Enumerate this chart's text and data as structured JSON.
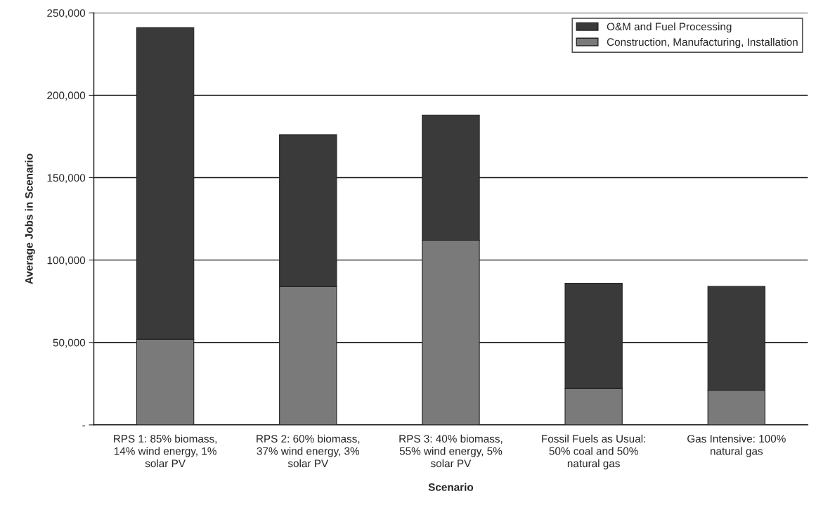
{
  "chart_data": {
    "type": "bar",
    "stacked": true,
    "categories": [
      "RPS 1: 85% biomass,\n14% wind energy, 1%\nsolar PV",
      "RPS 2: 60% biomass,\n37% wind energy, 3%\nsolar PV",
      "RPS 3: 40% biomass,\n55% wind energy, 5%\nsolar PV",
      "Fossil Fuels as Usual:\n50% coal and 50%\nnatural gas",
      "Gas Intensive: 100%\nnatural gas"
    ],
    "series": [
      {
        "name": "Construction, Manufacturing, Installation",
        "color": "#7a7a7a",
        "values": [
          52000,
          84000,
          112000,
          22000,
          21000
        ]
      },
      {
        "name": "O&M and Fuel Processing",
        "color": "#3a3a3a",
        "values": [
          189000,
          92000,
          76000,
          64000,
          63000
        ]
      }
    ],
    "xlabel": "Scenario",
    "ylabel": "Average Jobs in Scenario",
    "ylim": [
      0,
      250000
    ],
    "yticks": [
      {
        "value": 0,
        "label": "-"
      },
      {
        "value": 50000,
        "label": "50,000"
      },
      {
        "value": 100000,
        "label": "100,000"
      },
      {
        "value": 150000,
        "label": "150,000"
      },
      {
        "value": 200000,
        "label": "200,000"
      },
      {
        "value": 250000,
        "label": "250,000"
      }
    ],
    "grid": "y",
    "legend": "top right"
  }
}
